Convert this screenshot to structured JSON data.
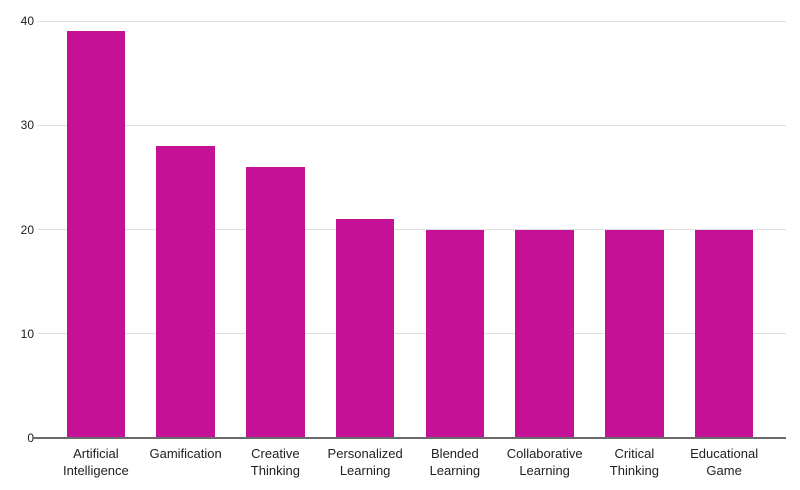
{
  "chart_data": {
    "type": "bar",
    "title": "",
    "xlabel": "",
    "ylabel": "",
    "categories": [
      "Artificial Intelligence",
      "Gamification",
      "Creative Thinking",
      "Personalized Learning",
      "Blended Learning",
      "Collaborative Learning",
      "Critical Thinking",
      "Educational Game"
    ],
    "values": [
      39,
      28,
      26,
      21,
      20,
      20,
      20,
      20
    ],
    "ylim": [
      0,
      40
    ],
    "yticks": [
      0,
      10,
      20,
      30,
      40
    ],
    "grid": true,
    "legend_position": "none",
    "colors": {
      "bar": "#C41196",
      "gridline": "#E0E0E0",
      "axis_line": "#6B6B6B",
      "label": "#212121",
      "background": "#FFFFFF"
    }
  }
}
